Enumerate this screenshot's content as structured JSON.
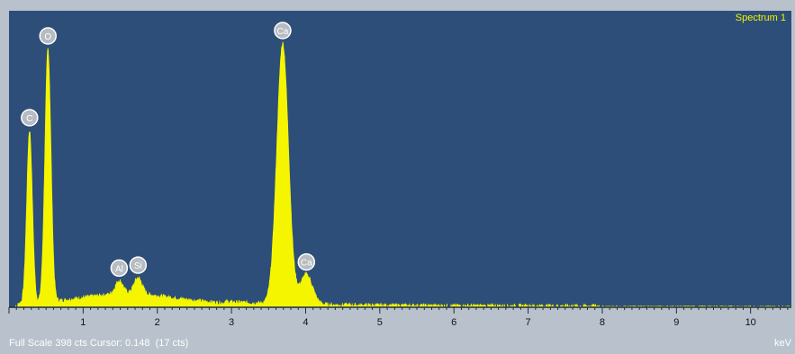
{
  "chart_data": {
    "type": "area",
    "title": "",
    "legend": "Spectrum 1",
    "xlabel": "keV",
    "ylabel": "",
    "xlim": [
      0,
      10.55
    ],
    "ylim": [
      0,
      398
    ],
    "x_ticks": [
      "1",
      "2",
      "3",
      "4",
      "5",
      "6",
      "7",
      "8",
      "9",
      "10"
    ],
    "fill_color": "#f5f500",
    "background_color": "#2c4e79",
    "peaks": [
      {
        "element": "C",
        "energy": 0.277,
        "counts": 232
      },
      {
        "element": "O",
        "energy": 0.525,
        "counts": 340
      },
      {
        "element": "Al",
        "energy": 1.486,
        "counts": 18
      },
      {
        "element": "Si",
        "energy": 1.74,
        "counts": 22
      },
      {
        "element": "Ca",
        "energy": 3.69,
        "counts": 350
      },
      {
        "element": "Ca",
        "energy": 4.01,
        "counts": 40
      }
    ]
  },
  "status_bar": {
    "full_scale": "Full Scale 398 cts Cursor: 0.148  (17 cts)",
    "unit": "keV"
  }
}
